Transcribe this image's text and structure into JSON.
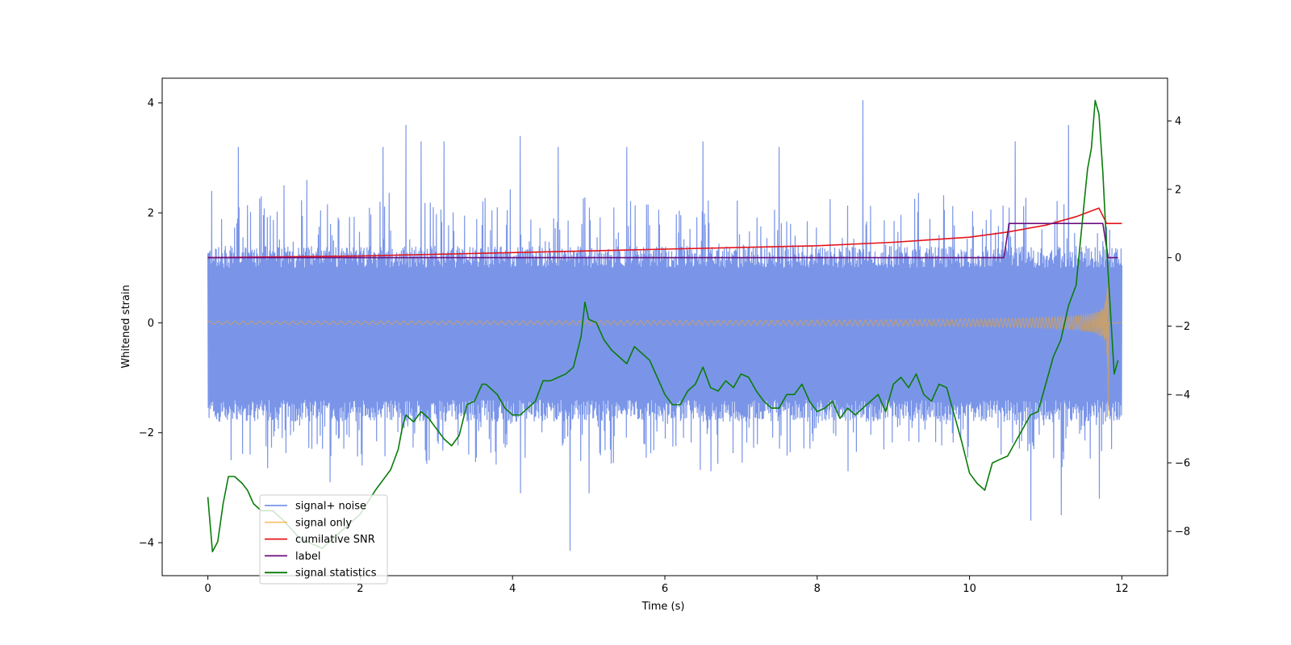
{
  "chart_data": {
    "type": "line",
    "title": "",
    "xlabel": "Time (s)",
    "ylabel": "Whitened strain",
    "ylabel_right": "",
    "xlim": [
      -0.6,
      12.6
    ],
    "ylim": [
      -4.6,
      4.45
    ],
    "ylim_right": [
      -9.3,
      5.25
    ],
    "x_ticks": [
      0,
      2,
      4,
      6,
      8,
      10,
      12
    ],
    "y_ticks": [
      -4,
      -2,
      0,
      2,
      4
    ],
    "y_ticks_right": [
      -8,
      -6,
      -4,
      -2,
      0,
      2,
      4
    ],
    "x_tick_labels": [
      "0",
      "2",
      "4",
      "6",
      "8",
      "10",
      "12"
    ],
    "y_tick_labels": [
      "−4",
      "−2",
      "0",
      "2",
      "4"
    ],
    "y_tick_labels_right": [
      "−8",
      "−6",
      "−4",
      "−2",
      "0",
      "2",
      "4"
    ],
    "grid": false,
    "legend_position": "lower-left",
    "colors": {
      "signal_noise": "#6b8ae6",
      "signal_only": "#f5a623",
      "cumulative_snr": "#e4141b",
      "label": "#6a0f7e",
      "signal_statistics": "#0a7c0a"
    },
    "series": [
      {
        "name": "signal+ noise",
        "axis": "left",
        "color": "#6b8ae6",
        "opacity": 0.9,
        "description_envelope": {
          "x_range": [
            0,
            12
          ],
          "typical_upper": 1.2,
          "typical_lower": -1.6,
          "spike_max": 4.05,
          "spike_min": -4.15
        },
        "peaks": [
          {
            "x": 0.05,
            "y": 2.4
          },
          {
            "x": 0.4,
            "y": 3.2
          },
          {
            "x": 0.7,
            "y": 2.3
          },
          {
            "x": 1.0,
            "y": 2.5
          },
          {
            "x": 1.3,
            "y": 2.6
          },
          {
            "x": 2.3,
            "y": 3.2
          },
          {
            "x": 2.6,
            "y": 3.6
          },
          {
            "x": 2.8,
            "y": 3.3
          },
          {
            "x": 3.1,
            "y": 3.3
          },
          {
            "x": 4.1,
            "y": 3.4
          },
          {
            "x": 4.6,
            "y": 3.2
          },
          {
            "x": 5.5,
            "y": 3.2
          },
          {
            "x": 6.5,
            "y": 3.3
          },
          {
            "x": 7.5,
            "y": 3.2
          },
          {
            "x": 8.6,
            "y": 4.05
          },
          {
            "x": 10.6,
            "y": 3.3
          },
          {
            "x": 11.3,
            "y": 3.6
          }
        ],
        "troughs": [
          {
            "x": 0.3,
            "y": -2.5
          },
          {
            "x": 1.6,
            "y": -2.9
          },
          {
            "x": 2.9,
            "y": -2.5
          },
          {
            "x": 4.1,
            "y": -3.1
          },
          {
            "x": 4.75,
            "y": -4.15
          },
          {
            "x": 5.0,
            "y": -3.1
          },
          {
            "x": 6.6,
            "y": -2.7
          },
          {
            "x": 8.4,
            "y": -2.7
          },
          {
            "x": 10.8,
            "y": -3.6
          },
          {
            "x": 11.2,
            "y": -3.5
          },
          {
            "x": 11.7,
            "y": -3.2
          }
        ]
      },
      {
        "name": "signal only",
        "axis": "left",
        "color": "#f5a623",
        "description_chirp": {
          "x_range": [
            0,
            11.82
          ],
          "amplitude_start": 0.03,
          "amplitude_end": 1.7,
          "after_merger_value": 0
        }
      },
      {
        "name": "cumilative SNR",
        "axis": "right",
        "color": "#e4141b",
        "x": [
          0,
          2,
          4,
          6,
          8,
          9,
          10,
          10.5,
          11,
          11.4,
          11.7,
          11.8,
          12
        ],
        "y": [
          0,
          0.05,
          0.15,
          0.25,
          0.35,
          0.45,
          0.6,
          0.75,
          0.95,
          1.2,
          1.45,
          1,
          1
        ]
      },
      {
        "name": "label",
        "axis": "right",
        "color": "#6a0f7e",
        "x": [
          0,
          10.45,
          10.52,
          11.75,
          11.82,
          11.95
        ],
        "y": [
          0,
          0,
          1,
          1,
          0,
          0
        ]
      },
      {
        "name": "signal statistics",
        "axis": "right",
        "color": "#0a7c0a",
        "x": [
          0,
          0.06,
          0.13,
          0.2,
          0.27,
          0.35,
          0.45,
          0.52,
          0.6,
          0.7,
          0.85,
          1.0,
          1.2,
          1.5,
          1.8,
          2.0,
          2.2,
          2.3,
          2.4,
          2.5,
          2.55,
          2.6,
          2.7,
          2.8,
          2.9,
          3.0,
          3.1,
          3.2,
          3.3,
          3.4,
          3.5,
          3.6,
          3.65,
          3.7,
          3.8,
          3.9,
          4.0,
          4.1,
          4.3,
          4.4,
          4.5,
          4.6,
          4.7,
          4.8,
          4.9,
          4.95,
          5.0,
          5.1,
          5.2,
          5.3,
          5.4,
          5.5,
          5.6,
          5.7,
          5.8,
          5.9,
          6.0,
          6.1,
          6.2,
          6.3,
          6.4,
          6.5,
          6.6,
          6.7,
          6.8,
          6.9,
          7.0,
          7.1,
          7.2,
          7.3,
          7.4,
          7.5,
          7.6,
          7.7,
          7.8,
          7.9,
          8.0,
          8.1,
          8.2,
          8.3,
          8.4,
          8.5,
          8.6,
          8.7,
          8.8,
          8.9,
          9.0,
          9.1,
          9.2,
          9.3,
          9.4,
          9.5,
          9.6,
          9.7,
          9.8,
          9.9,
          10.0,
          10.1,
          10.2,
          10.3,
          10.4,
          10.5,
          10.6,
          10.7,
          10.8,
          10.9,
          11.0,
          11.1,
          11.2,
          11.3,
          11.4,
          11.5,
          11.55,
          11.6,
          11.65,
          11.7,
          11.75,
          11.8,
          11.9,
          11.95
        ],
        "y": [
          -7.0,
          -8.6,
          -8.3,
          -7.2,
          -6.4,
          -6.4,
          -6.6,
          -6.8,
          -7.2,
          -7.4,
          -7.4,
          -7.7,
          -8.2,
          -8.5,
          -7.9,
          -7.5,
          -6.8,
          -6.5,
          -6.2,
          -5.6,
          -5.0,
          -4.6,
          -4.8,
          -4.5,
          -4.7,
          -5.0,
          -5.3,
          -5.5,
          -5.2,
          -4.3,
          -4.2,
          -3.7,
          -3.7,
          -3.8,
          -4.0,
          -4.4,
          -4.6,
          -4.6,
          -4.2,
          -3.6,
          -3.6,
          -3.5,
          -3.4,
          -3.2,
          -2.3,
          -1.3,
          -1.8,
          -1.9,
          -2.4,
          -2.7,
          -2.9,
          -3.1,
          -2.6,
          -2.8,
          -3.0,
          -3.5,
          -4.0,
          -4.3,
          -4.3,
          -3.9,
          -3.7,
          -3.2,
          -3.8,
          -3.9,
          -3.6,
          -3.8,
          -3.4,
          -3.5,
          -3.9,
          -4.2,
          -4.4,
          -4.4,
          -4.0,
          -4.0,
          -3.7,
          -4.2,
          -4.5,
          -4.4,
          -4.2,
          -4.7,
          -4.4,
          -4.6,
          -4.4,
          -4.2,
          -4.0,
          -4.5,
          -3.7,
          -3.5,
          -3.8,
          -3.4,
          -4.0,
          -4.2,
          -3.7,
          -3.8,
          -4.6,
          -5.4,
          -6.3,
          -6.6,
          -6.8,
          -6.0,
          -5.9,
          -5.8,
          -5.4,
          -5.0,
          -4.6,
          -4.5,
          -3.7,
          -2.9,
          -2.4,
          -1.4,
          -0.8,
          1.5,
          2.6,
          3.2,
          4.6,
          4.2,
          2.5,
          0.3,
          -3.4,
          -3.0
        ]
      }
    ],
    "legend": [
      {
        "label": "signal+ noise",
        "color": "#6b8ae6",
        "alpha": 0.9
      },
      {
        "label": "signal only",
        "color": "#f5a623",
        "alpha": 0.6
      },
      {
        "label": "cumilative SNR",
        "color": "#e4141b",
        "alpha": 1
      },
      {
        "label": "label",
        "color": "#6a0f7e",
        "alpha": 1
      },
      {
        "label": "signal statistics",
        "color": "#0a7c0a",
        "alpha": 1
      }
    ]
  }
}
